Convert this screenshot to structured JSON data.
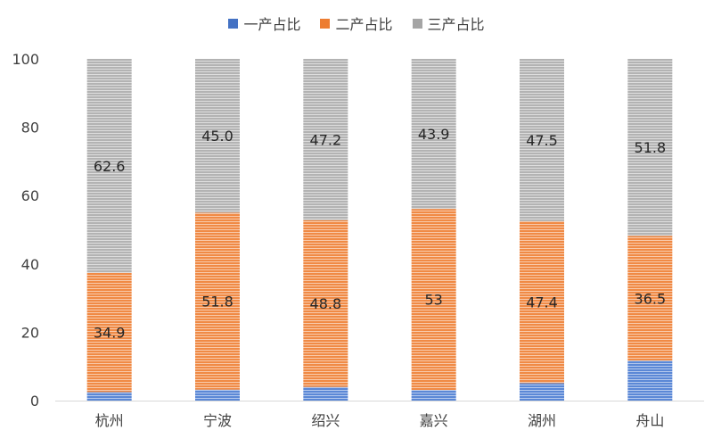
{
  "chart_data": {
    "type": "bar",
    "stacked": true,
    "categories": [
      "杭州",
      "宁波",
      "绍兴",
      "嘉兴",
      "湖州",
      "舟山"
    ],
    "series": [
      {
        "name": "一产占比",
        "color": "#4472C4",
        "values": [
          2.5,
          3.2,
          4.0,
          3.1,
          5.1,
          11.7
        ],
        "labels": [
          "",
          "",
          "",
          "",
          "",
          ""
        ]
      },
      {
        "name": "二产占比",
        "color": "#ED7D31",
        "values": [
          34.9,
          51.8,
          48.8,
          53,
          47.4,
          36.5
        ],
        "labels": [
          "34.9",
          "51.8",
          "48.8",
          "53",
          "47.4",
          "36.5"
        ]
      },
      {
        "name": "三产占比",
        "color": "#A5A5A5",
        "values": [
          62.6,
          45.0,
          47.2,
          43.9,
          47.5,
          51.8
        ],
        "labels": [
          "62.6",
          "45.0",
          "47.2",
          "43.9",
          "47.5",
          "51.8"
        ]
      }
    ],
    "ylim": [
      0,
      100
    ],
    "yticks": [
      "0",
      "20",
      "40",
      "60",
      "80",
      "100"
    ],
    "grid": false,
    "legend_position": "top"
  }
}
